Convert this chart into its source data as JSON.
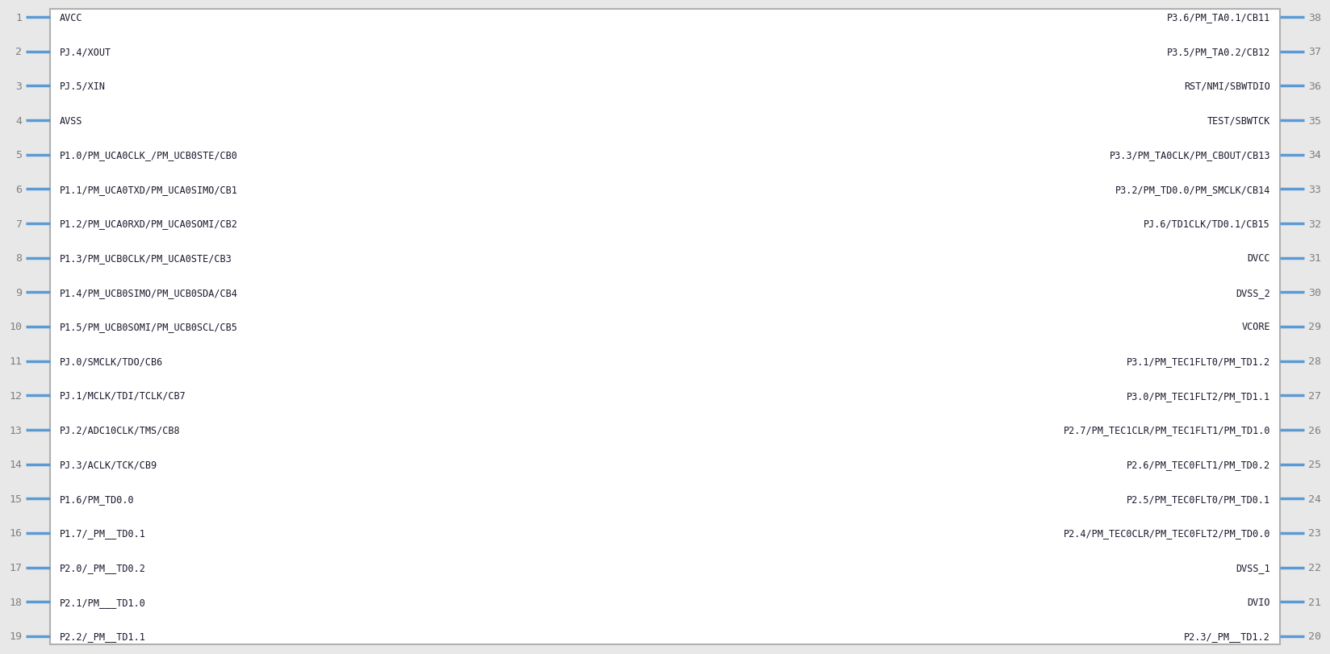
{
  "fig_width": 16.48,
  "fig_height": 8.12,
  "bg_color": "#e8e8e8",
  "box_facecolor": "#ffffff",
  "box_edgecolor": "#b0b0b0",
  "pin_color": "#5b9bd5",
  "text_color": "#1a1a2e",
  "number_color": "#808080",
  "left_pins": [
    {
      "num": 1,
      "label": "AVCC"
    },
    {
      "num": 2,
      "label": "PJ.4/XOUT"
    },
    {
      "num": 3,
      "label": "PJ.5/XIN"
    },
    {
      "num": 4,
      "label": "AVSS"
    },
    {
      "num": 5,
      "label": "P1.0/PM_UCA0CLK_/PM_UCB0STE/CB0"
    },
    {
      "num": 6,
      "label": "P1.1/PM_UCA0TXD/PM_UCA0SIMO/CB1"
    },
    {
      "num": 7,
      "label": "P1.2/PM_UCA0RXD/PM_UCA0SOMI/CB2"
    },
    {
      "num": 8,
      "label": "P1.3/PM_UCB0CLK/PM_UCA0STE/CB3"
    },
    {
      "num": 9,
      "label": "P1.4/PM_UCB0SIMO/PM_UCB0SDA/CB4"
    },
    {
      "num": 10,
      "label": "P1.5/PM_UCB0SOMI/PM_UCB0SCL/CB5"
    },
    {
      "num": 11,
      "label": "PJ.0/SMCLK/TDO/CB6"
    },
    {
      "num": 12,
      "label": "PJ.1/MCLK/TDI/TCLK/CB7"
    },
    {
      "num": 13,
      "label": "PJ.2/ADC10CLK/TMS/CB8"
    },
    {
      "num": 14,
      "label": "PJ.3/ACLK/TCK/CB9"
    },
    {
      "num": 15,
      "label": "P1.6/PM_TD0.0"
    },
    {
      "num": 16,
      "label": "P1.7/_PM__TD0.1"
    },
    {
      "num": 17,
      "label": "P2.0/_PM__TD0.2"
    },
    {
      "num": 18,
      "label": "P2.1/PM___TD1.0"
    },
    {
      "num": 19,
      "label": "P2.2/_PM__TD1.1"
    }
  ],
  "right_pins": [
    {
      "num": 38,
      "label": "P3.6/PM_TA0.1/CB11"
    },
    {
      "num": 37,
      "label": "P3.5/PM_TA0.2/CB12"
    },
    {
      "num": 36,
      "label": "RST/NMI/SBWTDIO"
    },
    {
      "num": 35,
      "label": "TEST/SBWTCK"
    },
    {
      "num": 34,
      "label": "P3.3/PM_TA0CLK/PM_CBOUT/CB13"
    },
    {
      "num": 33,
      "label": "P3.2/PM_TD0.0/PM_SMCLK/CB14"
    },
    {
      "num": 32,
      "label": "PJ.6/TD1CLK/TD0.1/CB15"
    },
    {
      "num": 31,
      "label": "DVCC"
    },
    {
      "num": 30,
      "label": "DVSS_2"
    },
    {
      "num": 29,
      "label": "VCORE"
    },
    {
      "num": 28,
      "label": "P3.1/PM_TEC1FLT0/PM_TD1.2"
    },
    {
      "num": 27,
      "label": "P3.0/PM_TEC1FLT2/PM_TD1.1"
    },
    {
      "num": 26,
      "label": "P2.7/PM_TEC1CLR/PM_TEC1FLT1/PM_TD1.0"
    },
    {
      "num": 25,
      "label": "P2.6/PM_TEC0FLT1/PM_TD0.2"
    },
    {
      "num": 24,
      "label": "P2.5/PM_TEC0FLT0/PM_TD0.1"
    },
    {
      "num": 23,
      "label": "P2.4/PM_TEC0CLR/PM_TEC0FLT2/PM_TD0.0"
    },
    {
      "num": 22,
      "label": "DVSS_1"
    },
    {
      "num": 21,
      "label": "DVIO"
    },
    {
      "num": 20,
      "label": "P2.3/_PM__TD1.2"
    }
  ]
}
